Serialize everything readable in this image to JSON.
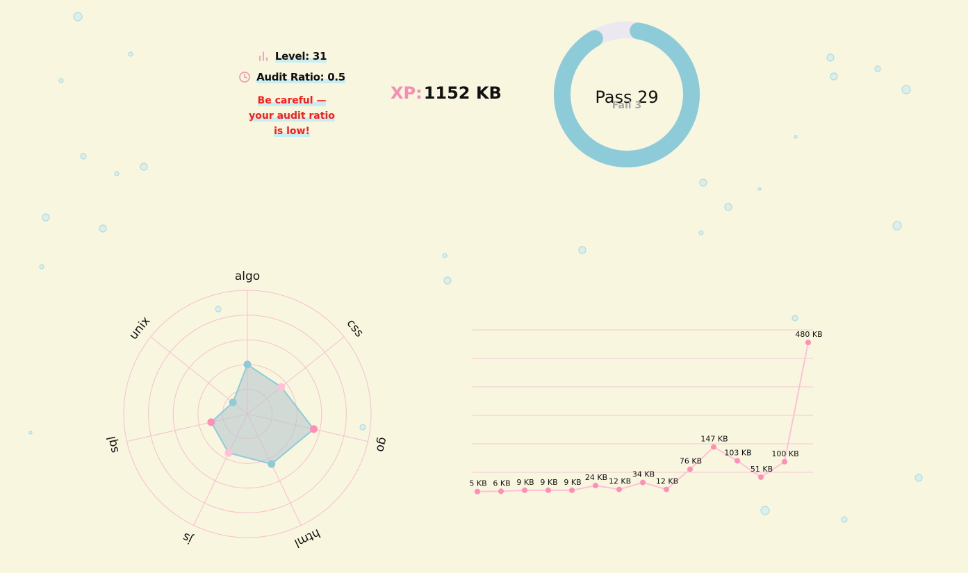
{
  "stats": {
    "level_label": "Level: 31",
    "audit_ratio_label": "Audit Ratio: 0.5",
    "warning": "Be careful — your audit ratio is low!"
  },
  "xp": {
    "label": "XP:",
    "value": "1152 KB"
  },
  "projects": {
    "pass_label": "Pass 29",
    "fail_label": "Fail 3",
    "pass": 29,
    "fail": 3
  },
  "icons": {
    "level": "bar-chart-icon",
    "audit": "clock-icon"
  },
  "colors": {
    "background": "#f8f6df",
    "accent_pink": "#f48fb1",
    "accent_blue": "#8ecbd8",
    "warning": "#ff1a1a",
    "fail_gray": "#a6a6a6"
  },
  "chart_data": [
    {
      "type": "radar",
      "categories": [
        "algo",
        "css",
        "go",
        "html",
        "js",
        "sql",
        "unix"
      ],
      "values": [
        0.4,
        0.35,
        0.55,
        0.45,
        0.35,
        0.3,
        0.15
      ],
      "range": [
        0,
        1
      ]
    },
    {
      "type": "line",
      "x": [
        1,
        2,
        3,
        4,
        5,
        6,
        7,
        8,
        9,
        10,
        11,
        12,
        13,
        14,
        15,
        16
      ],
      "values": [
        5,
        6,
        9,
        9,
        9,
        24,
        12,
        34,
        12,
        76,
        147,
        103,
        51,
        100,
        480,
        480
      ],
      "labels": [
        "5 KB",
        "6 KB",
        "9 KB",
        "9 KB",
        "9 KB",
        "24 KB",
        "12 KB",
        "34 KB",
        "12 KB",
        "76 KB",
        "147 KB",
        "103 KB",
        "51 KB",
        "100 KB",
        "480 KB"
      ],
      "grid": true
    }
  ]
}
